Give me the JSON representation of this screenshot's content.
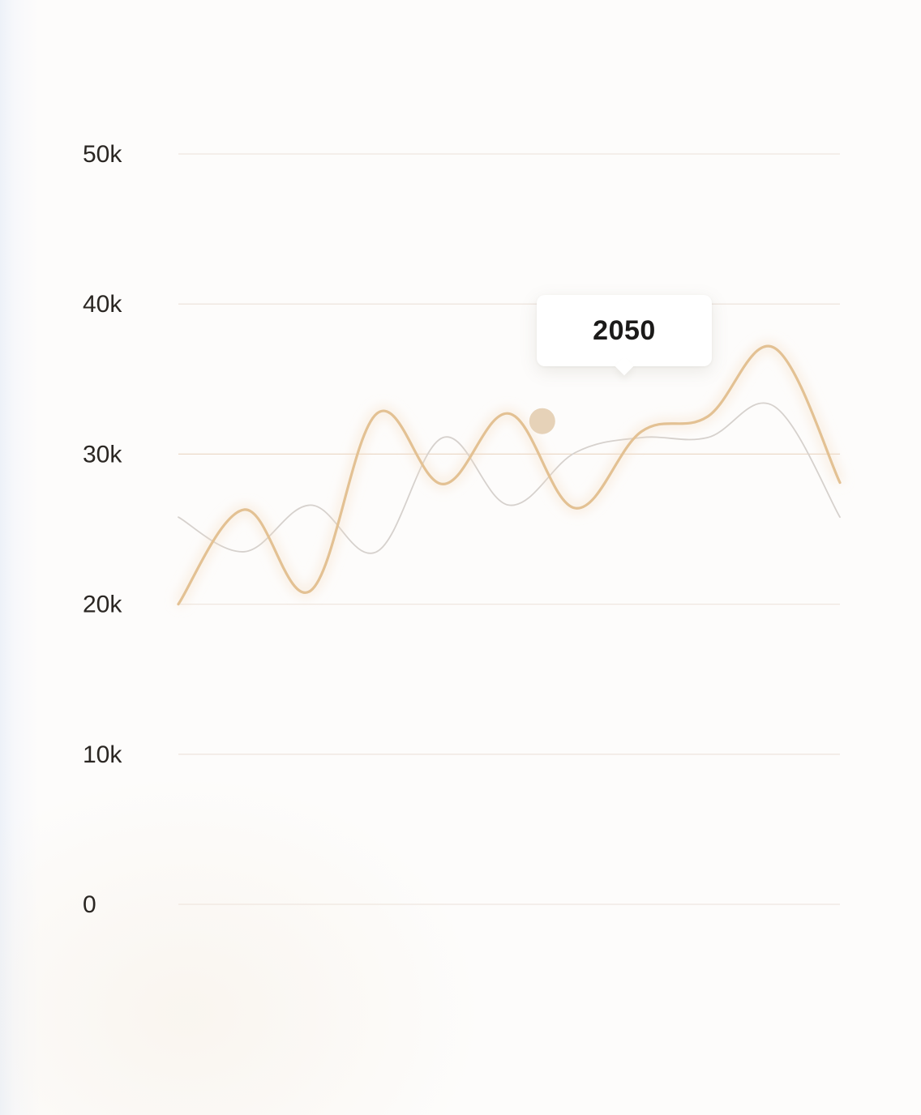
{
  "chart_data": {
    "type": "line",
    "title": "",
    "xlabel": "",
    "ylabel": "",
    "ylim": [
      0,
      50000
    ],
    "y_ticks": [
      {
        "value": 50000,
        "label": "50k"
      },
      {
        "value": 40000,
        "label": "40k"
      },
      {
        "value": 30000,
        "label": "30k"
      },
      {
        "value": 20000,
        "label": "20k"
      },
      {
        "value": 10000,
        "label": "10k"
      },
      {
        "value": 0,
        "label": "0"
      }
    ],
    "grid": true,
    "legend": "none",
    "series": [
      {
        "color": "#e3c193",
        "values": [
          20000,
          26300,
          20900,
          32700,
          28000,
          32700,
          26400,
          31500,
          32500,
          37100,
          28100
        ]
      },
      {
        "color": "#d6d1cd",
        "values": [
          25800,
          23500,
          26600,
          23500,
          31100,
          26600,
          30100,
          31100,
          31100,
          33200,
          25800
        ]
      }
    ],
    "highlight": {
      "value": 32200,
      "label": "2050",
      "color": "#e6d2b8"
    }
  }
}
